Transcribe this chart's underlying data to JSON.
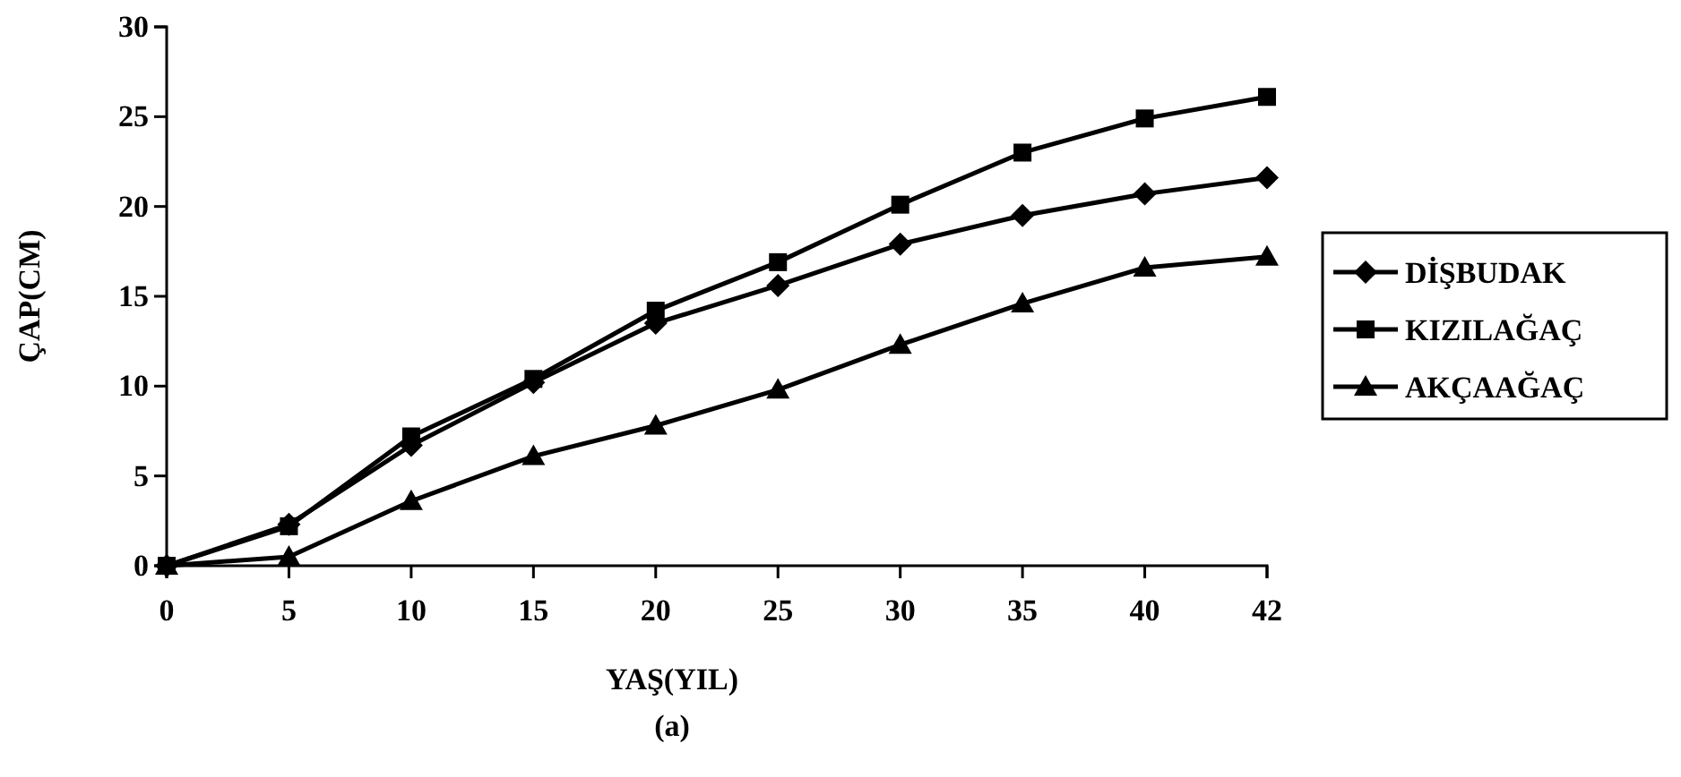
{
  "chart_data": {
    "type": "line",
    "xlabel": "YAŞ(YIL)",
    "ylabel": "ÇAP(CM)",
    "annotations": [
      "(a)"
    ],
    "categories": [
      "0",
      "5",
      "10",
      "15",
      "20",
      "25",
      "30",
      "35",
      "40",
      "42"
    ],
    "ylim": [
      0,
      30
    ],
    "yticks": [
      0,
      5,
      10,
      15,
      20,
      25,
      30
    ],
    "grid": false,
    "legend": "right",
    "line_style": "solid",
    "series": [
      {
        "name": "DİŞBUDAK",
        "color": "#000000",
        "marker": "diamond",
        "values": [
          0,
          2.3,
          6.7,
          10.2,
          13.5,
          15.6,
          17.9,
          19.5,
          20.7,
          21.6
        ]
      },
      {
        "name": "KIZILAĞAÇ",
        "color": "#000000",
        "marker": "square",
        "values": [
          0,
          2.2,
          7.2,
          10.4,
          14.2,
          16.9,
          20.1,
          23,
          24.9,
          26.1
        ]
      },
      {
        "name": "AKÇAAĞAÇ",
        "color": "#000000",
        "marker": "triangle",
        "values": [
          0,
          0.5,
          3.6,
          6.1,
          7.8,
          9.8,
          12.3,
          14.6,
          16.6,
          17.2
        ]
      }
    ]
  }
}
